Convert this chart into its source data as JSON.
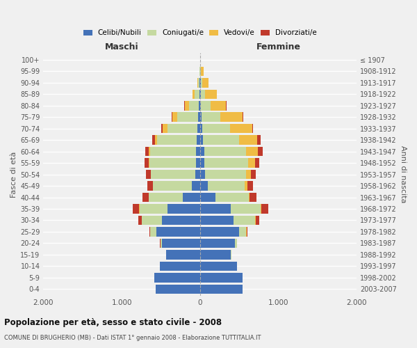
{
  "age_groups": [
    "0-4",
    "5-9",
    "10-14",
    "15-19",
    "20-24",
    "25-29",
    "30-34",
    "35-39",
    "40-44",
    "45-49",
    "50-54",
    "55-59",
    "60-64",
    "65-69",
    "70-74",
    "75-79",
    "80-84",
    "85-89",
    "90-94",
    "95-99",
    "100+"
  ],
  "birth_years": [
    "2003-2007",
    "1998-2002",
    "1993-1997",
    "1988-1992",
    "1983-1987",
    "1978-1982",
    "1973-1977",
    "1968-1972",
    "1963-1967",
    "1958-1962",
    "1953-1957",
    "1948-1952",
    "1943-1947",
    "1938-1942",
    "1933-1937",
    "1928-1932",
    "1923-1927",
    "1918-1922",
    "1913-1917",
    "1908-1912",
    "≤ 1907"
  ],
  "male": {
    "celibi": [
      570,
      580,
      510,
      430,
      490,
      560,
      490,
      420,
      220,
      105,
      65,
      55,
      55,
      45,
      35,
      25,
      15,
      8,
      4,
      2,
      2
    ],
    "coniugati": [
      0,
      0,
      2,
      5,
      18,
      75,
      255,
      355,
      435,
      495,
      560,
      590,
      580,
      500,
      385,
      265,
      130,
      60,
      20,
      5,
      0
    ],
    "vedovi": [
      0,
      0,
      0,
      0,
      0,
      1,
      1,
      2,
      3,
      5,
      8,
      10,
      20,
      30,
      58,
      60,
      50,
      30,
      10,
      2,
      0
    ],
    "divorziati": [
      0,
      0,
      0,
      1,
      3,
      10,
      40,
      80,
      80,
      70,
      58,
      52,
      48,
      38,
      14,
      9,
      4,
      2,
      0,
      0,
      0
    ]
  },
  "female": {
    "nubili": [
      540,
      545,
      470,
      395,
      445,
      495,
      425,
      395,
      195,
      95,
      60,
      50,
      50,
      40,
      30,
      22,
      12,
      8,
      6,
      4,
      2
    ],
    "coniugate": [
      0,
      0,
      2,
      5,
      22,
      95,
      280,
      375,
      425,
      475,
      530,
      560,
      540,
      460,
      355,
      240,
      120,
      55,
      18,
      7,
      0
    ],
    "vedove": [
      0,
      0,
      0,
      0,
      1,
      2,
      3,
      8,
      15,
      30,
      58,
      88,
      148,
      228,
      278,
      280,
      200,
      150,
      80,
      30,
      2
    ],
    "divorziate": [
      0,
      0,
      0,
      1,
      4,
      12,
      45,
      90,
      85,
      75,
      63,
      58,
      58,
      48,
      14,
      11,
      7,
      4,
      2,
      0,
      0
    ]
  },
  "colors": {
    "celibi": "#4472b8",
    "coniugati": "#c5d9a0",
    "vedovi": "#f0bc45",
    "divorziati": "#c0392b"
  },
  "title": "Popolazione per età, sesso e stato civile - 2008",
  "subtitle": "COMUNE DI BRUGHERIO (MB) - Dati ISTAT 1° gennaio 2008 - Elaborazione TUTTITALIA.IT",
  "xlabel_left": "Maschi",
  "xlabel_right": "Femmine",
  "ylabel_left": "Fasce di età",
  "ylabel_right": "Anni di nascita",
  "xlim": 2000,
  "xticklabels": [
    "2.000",
    "1.000",
    "0",
    "1.000",
    "2.000"
  ],
  "background_color": "#f0f0f0"
}
